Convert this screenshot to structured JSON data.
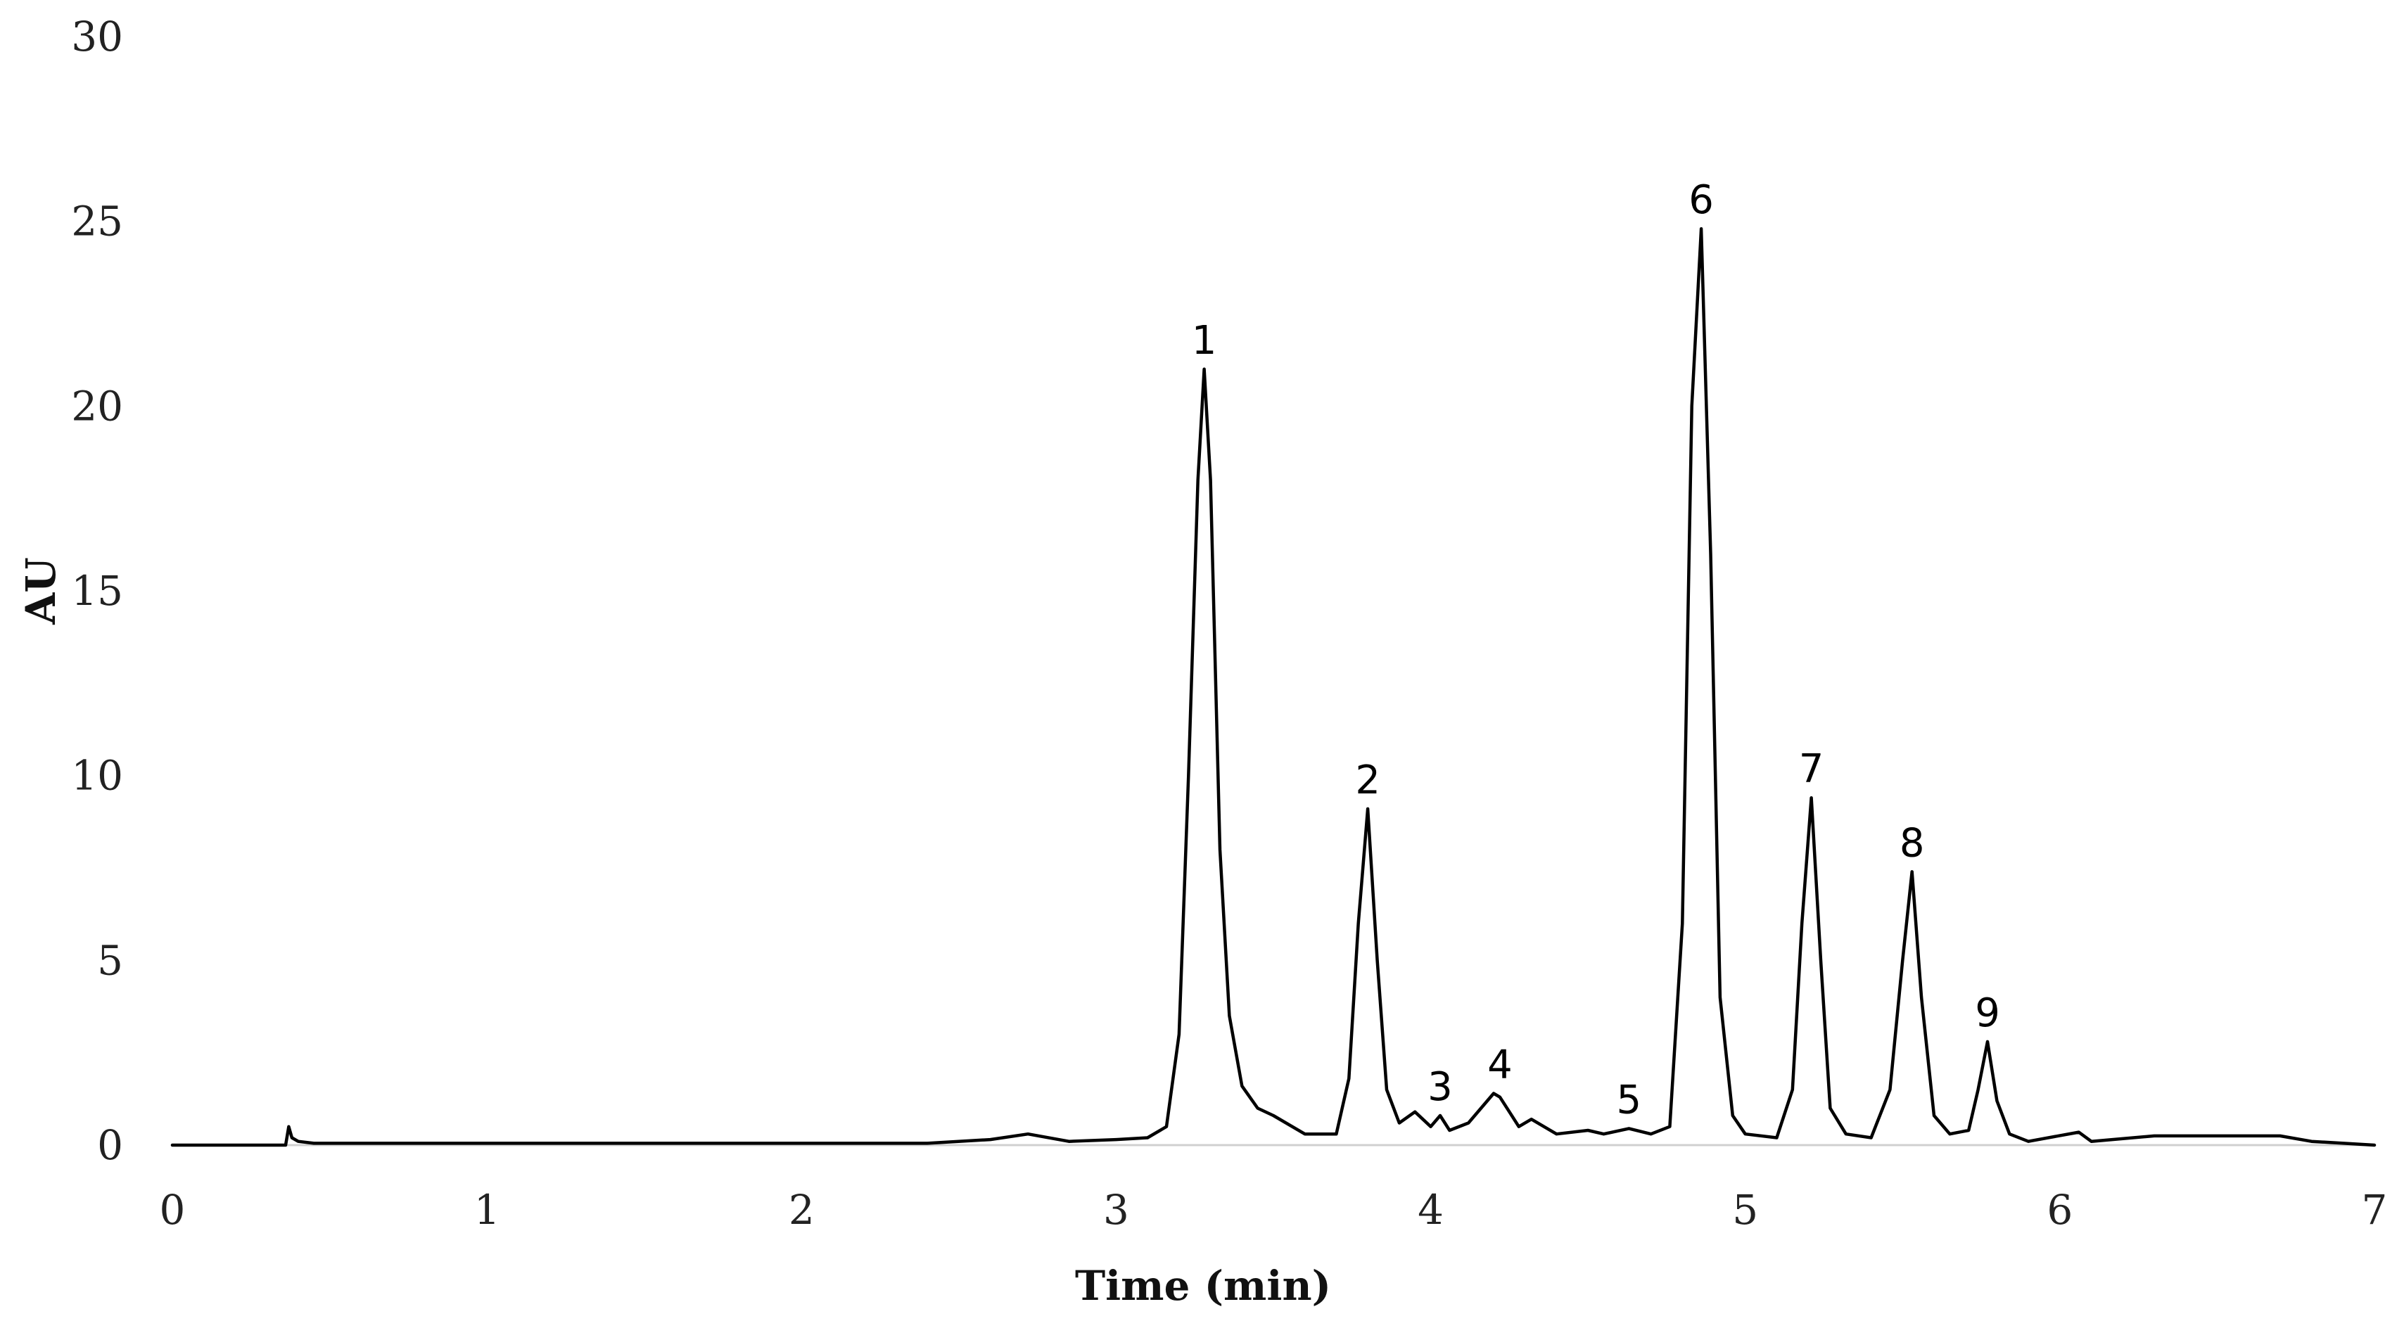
{
  "chart_data": {
    "type": "line",
    "title": "",
    "xlabel": "Time (min)",
    "ylabel": "AU",
    "xlim": [
      0,
      7
    ],
    "ylim": [
      0,
      30
    ],
    "x_ticks": [
      0,
      1,
      2,
      3,
      4,
      5,
      6,
      7
    ],
    "y_ticks": [
      0,
      5,
      10,
      15,
      20,
      25,
      30
    ],
    "grid": false,
    "legend": "none",
    "line_color": "#000000",
    "baseline_color": "#d0d0d0",
    "series": [
      {
        "x": [
          0.0,
          0.36,
          0.37,
          0.38,
          0.4,
          0.45,
          1.0,
          2.0,
          2.4,
          2.6,
          2.72,
          2.85,
          3.0,
          3.1,
          3.16,
          3.2,
          3.23,
          3.26,
          3.28,
          3.3,
          3.33,
          3.36,
          3.4,
          3.45,
          3.5,
          3.6,
          3.7,
          3.74,
          3.77,
          3.8,
          3.83,
          3.86,
          3.9,
          3.95,
          4.0,
          4.03,
          4.06,
          4.12,
          4.16,
          4.2,
          4.22,
          4.25,
          4.28,
          4.32,
          4.4,
          4.5,
          4.55,
          4.63,
          4.7,
          4.76,
          4.8,
          4.83,
          4.86,
          4.89,
          4.92,
          4.96,
          5.0,
          5.1,
          5.15,
          5.18,
          5.21,
          5.24,
          5.27,
          5.32,
          5.4,
          5.46,
          5.5,
          5.53,
          5.56,
          5.6,
          5.65,
          5.71,
          5.74,
          5.77,
          5.8,
          5.84,
          5.9,
          6.06,
          6.1,
          6.3,
          6.48,
          6.7,
          6.8,
          7.0
        ],
        "y": [
          0.0,
          0.0,
          0.5,
          0.2,
          0.1,
          0.05,
          0.05,
          0.05,
          0.05,
          0.15,
          0.3,
          0.1,
          0.15,
          0.2,
          0.5,
          3.0,
          10.0,
          18.0,
          21.0,
          18.0,
          8.0,
          3.5,
          1.6,
          1.0,
          0.8,
          0.3,
          0.3,
          1.8,
          6.0,
          9.1,
          5.0,
          1.5,
          0.6,
          0.9,
          0.5,
          0.8,
          0.4,
          0.6,
          1.0,
          1.4,
          1.3,
          0.9,
          0.5,
          0.7,
          0.3,
          0.4,
          0.3,
          0.45,
          0.3,
          0.5,
          6.0,
          20.0,
          24.8,
          16.0,
          4.0,
          0.8,
          0.3,
          0.2,
          1.5,
          6.0,
          9.4,
          5.0,
          1.0,
          0.3,
          0.2,
          1.5,
          5.0,
          7.4,
          4.0,
          0.8,
          0.3,
          0.4,
          1.5,
          2.8,
          1.2,
          0.3,
          0.1,
          0.35,
          0.1,
          0.25,
          0.25,
          0.25,
          0.1,
          0.0
        ]
      }
    ],
    "annotations": [
      {
        "text": "1",
        "x": 3.28,
        "y": 21.0
      },
      {
        "text": "2",
        "x": 3.8,
        "y": 9.1
      },
      {
        "text": "3",
        "x": 4.03,
        "y": 0.8
      },
      {
        "text": "4",
        "x": 4.22,
        "y": 1.4
      },
      {
        "text": "5",
        "x": 4.63,
        "y": 0.45
      },
      {
        "text": "6",
        "x": 4.86,
        "y": 24.8
      },
      {
        "text": "7",
        "x": 5.21,
        "y": 9.4
      },
      {
        "text": "8",
        "x": 5.53,
        "y": 7.4
      },
      {
        "text": "9",
        "x": 5.77,
        "y": 2.8
      }
    ]
  }
}
